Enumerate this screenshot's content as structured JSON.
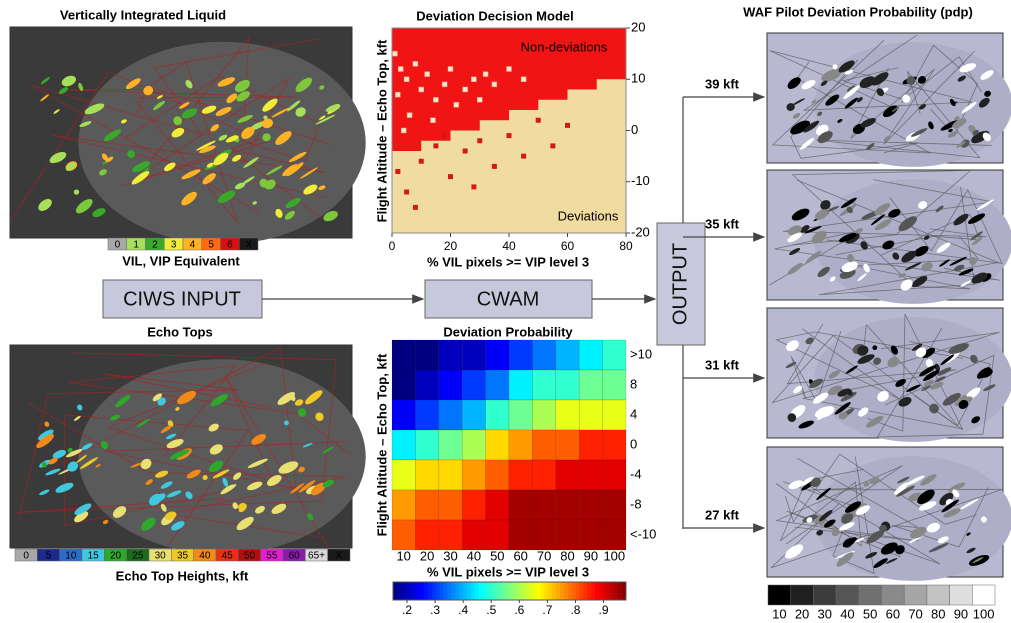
{
  "vil": {
    "title": "Vertically Integrated Liquid",
    "legend": {
      "labels": [
        "0",
        "1",
        "2",
        "3",
        "4",
        "5",
        "6",
        "X"
      ],
      "colors": [
        "#a8a8a8",
        "#a6e05a",
        "#3aa82a",
        "#f0ec3a",
        "#ffb224",
        "#ff6a10",
        "#d81010",
        "#1a1a1a"
      ]
    },
    "caption": "VIL, VIP Equivalent"
  },
  "echo_tops": {
    "title": "Echo Tops",
    "legend": {
      "labels": [
        "0",
        "5",
        "10",
        "15",
        "20",
        "25",
        "30",
        "35",
        "40",
        "45",
        "50",
        "55",
        "60",
        "65+",
        "X"
      ],
      "colors": [
        "#a8a8a8",
        "#1c2a8c",
        "#2a6cc8",
        "#40c8e0",
        "#2ea82a",
        "#1c6a1c",
        "#e8e070",
        "#f0c828",
        "#f08a18",
        "#e83018",
        "#b01010",
        "#e020d0",
        "#8a1aa8",
        "#d8d8d8",
        "#1a1a1a"
      ]
    },
    "caption": "Echo Top Heights, kft"
  },
  "boxes": {
    "input": "CIWS INPUT",
    "model": "CWAM",
    "output": "OUTPUT"
  },
  "decision_model": {
    "type": "scatter",
    "title": "Deviation Decision Model",
    "xlabel": "% VIL pixels >= VIP level 3",
    "ylabel": "Flight Altitude – Echo Top, kft",
    "xlim": [
      0,
      80
    ],
    "ylim": [
      -20,
      20
    ],
    "xticks": [
      0,
      20,
      40,
      60,
      80
    ],
    "yticks": [
      -20,
      -10,
      0,
      10,
      20
    ],
    "regions": {
      "above": {
        "label": "Non-deviations",
        "color": "#f01414"
      },
      "below": {
        "label": "Deviations",
        "color": "#f0dca0"
      }
    },
    "boundary": {
      "x": [
        0,
        10,
        20,
        30,
        40,
        50,
        60,
        70,
        80
      ],
      "y": [
        -4,
        -2,
        0,
        2,
        4,
        6,
        8,
        10,
        13
      ]
    },
    "series": [
      {
        "color": "#f4e6c0",
        "x": [
          1,
          3,
          5,
          2,
          8,
          10,
          12,
          15,
          18,
          20,
          22,
          25,
          28,
          30,
          35,
          6,
          4,
          14,
          32,
          40,
          45
        ],
        "y": [
          15,
          12,
          10,
          7,
          13,
          8,
          11,
          6,
          9,
          12,
          5,
          8,
          10,
          6,
          9,
          3,
          0,
          2,
          11,
          12,
          10
        ]
      },
      {
        "color": "#d41818",
        "x": [
          2,
          5,
          10,
          15,
          20,
          25,
          30,
          35,
          40,
          45,
          50,
          55,
          60,
          8,
          18,
          28
        ],
        "y": [
          -8,
          -12,
          -6,
          -3,
          -9,
          -4,
          -2,
          -7,
          -1,
          -5,
          2,
          -3,
          1,
          -15,
          -1,
          -11
        ]
      }
    ]
  },
  "deviation_probability": {
    "type": "heatmap",
    "title": "Deviation Probability",
    "xlabel": "% VIL pixels >= VIP level 3",
    "ylabel": "Flight Altitude – Echo Top, kft",
    "categories": [
      10,
      20,
      30,
      40,
      50,
      60,
      70,
      80,
      90,
      100
    ],
    "rows": [
      ">10",
      "8",
      "4",
      "0",
      "-4",
      "-8",
      "<-10"
    ],
    "values": [
      [
        0.15,
        0.15,
        0.2,
        0.2,
        0.25,
        0.3,
        0.35,
        0.4,
        0.45,
        0.5
      ],
      [
        0.15,
        0.2,
        0.25,
        0.3,
        0.35,
        0.45,
        0.5,
        0.5,
        0.55,
        0.55
      ],
      [
        0.25,
        0.3,
        0.35,
        0.4,
        0.5,
        0.55,
        0.6,
        0.65,
        0.65,
        0.65
      ],
      [
        0.45,
        0.5,
        0.55,
        0.6,
        0.7,
        0.75,
        0.8,
        0.8,
        0.85,
        0.85
      ],
      [
        0.65,
        0.7,
        0.7,
        0.75,
        0.8,
        0.85,
        0.85,
        0.9,
        0.9,
        0.9
      ],
      [
        0.75,
        0.8,
        0.8,
        0.85,
        0.9,
        0.95,
        0.95,
        0.95,
        0.95,
        0.95
      ],
      [
        0.8,
        0.85,
        0.85,
        0.9,
        0.9,
        0.95,
        0.95,
        0.95,
        0.95,
        0.95
      ]
    ],
    "colorbar": {
      "lim": [
        0.15,
        0.98
      ],
      "ticks": [
        {
          "value": 0.2,
          "label": ".2"
        },
        {
          "value": 0.3,
          "label": ".3"
        },
        {
          "value": 0.4,
          "label": ".4"
        },
        {
          "value": 0.5,
          "label": ".5"
        },
        {
          "value": 0.6,
          "label": ".6"
        },
        {
          "value": 0.7,
          "label": ".7"
        },
        {
          "value": 0.8,
          "label": ".8"
        },
        {
          "value": 0.9,
          "label": ".9"
        }
      ]
    }
  },
  "output": {
    "title": "WAF Pilot Deviation Probability (pdp)",
    "levels": [
      "39 kft",
      "35 kft",
      "31 kft",
      "27 kft"
    ],
    "colorbar": {
      "labels": [
        10,
        20,
        30,
        40,
        50,
        60,
        70,
        80,
        90,
        100
      ],
      "colors": [
        "#000000",
        "#202020",
        "#3c3c3c",
        "#565656",
        "#707070",
        "#8a8a8a",
        "#a6a6a6",
        "#c2c2c2",
        "#dedede",
        "#ffffff"
      ]
    }
  }
}
